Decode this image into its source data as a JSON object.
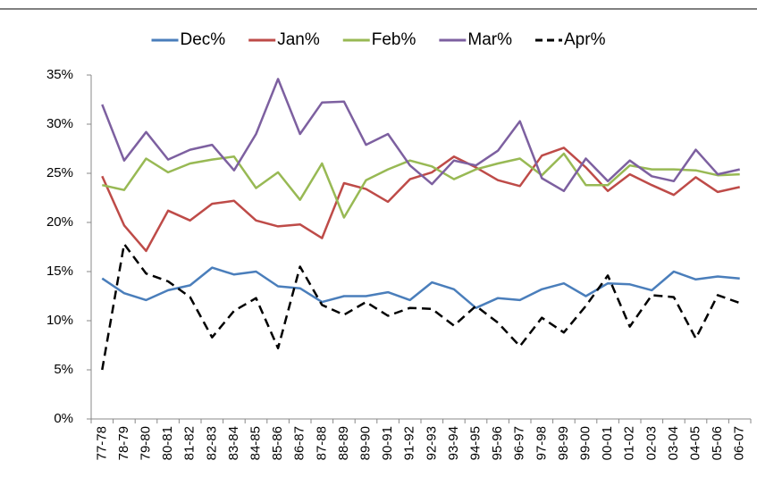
{
  "chart_data": {
    "type": "line",
    "categories": [
      "77-78",
      "78-79",
      "79-80",
      "80-81",
      "81-82",
      "82-83",
      "83-84",
      "84-85",
      "85-86",
      "86-87",
      "87-88",
      "88-89",
      "89-90",
      "90-91",
      "91-92",
      "92-93",
      "93-94",
      "94-95",
      "95-96",
      "96-97",
      "97-98",
      "98-99",
      "99-00",
      "00-01",
      "01-02",
      "02-03",
      "03-04",
      "04-05",
      "05-06",
      "06-07"
    ],
    "series": [
      {
        "name": "Dec%",
        "color": "#4a7ebb",
        "values": [
          14.3,
          12.8,
          12.1,
          13.1,
          13.6,
          15.4,
          14.7,
          15.0,
          13.5,
          13.3,
          11.9,
          12.5,
          12.5,
          12.9,
          12.1,
          13.9,
          13.2,
          11.3,
          12.3,
          12.1,
          13.2,
          13.8,
          12.5,
          13.8,
          13.7,
          13.1,
          15.0,
          14.2,
          14.5,
          14.3
        ]
      },
      {
        "name": "Jan%",
        "color": "#be4b48",
        "values": [
          24.7,
          19.7,
          17.1,
          21.2,
          20.2,
          21.9,
          22.2,
          20.2,
          19.6,
          19.8,
          18.4,
          24.0,
          23.4,
          22.1,
          24.4,
          25.1,
          26.7,
          25.6,
          24.3,
          23.7,
          26.8,
          27.6,
          25.6,
          23.2,
          24.9,
          23.8,
          22.8,
          24.6,
          23.1,
          23.6
        ]
      },
      {
        "name": "Feb%",
        "color": "#98b954",
        "values": [
          23.8,
          23.3,
          26.5,
          25.1,
          26.0,
          26.4,
          26.7,
          23.5,
          25.1,
          22.3,
          26.0,
          20.5,
          24.3,
          25.4,
          26.3,
          25.7,
          24.4,
          25.4,
          26.0,
          26.5,
          24.8,
          27.0,
          23.8,
          23.8,
          25.8,
          25.4,
          25.4,
          25.3,
          24.8,
          24.9
        ]
      },
      {
        "name": "Mar%",
        "color": "#7d60a0",
        "values": [
          32.0,
          26.3,
          29.2,
          26.4,
          27.4,
          27.9,
          25.3,
          29.0,
          34.6,
          29.0,
          32.2,
          32.3,
          27.9,
          29.0,
          25.8,
          23.9,
          26.3,
          25.8,
          27.3,
          30.3,
          24.5,
          23.2,
          26.5,
          24.2,
          26.3,
          24.7,
          24.2,
          27.4,
          24.9,
          25.4
        ]
      },
      {
        "name": "Apr%",
        "color": "#000000",
        "dashed": true,
        "values": [
          5.0,
          17.8,
          14.8,
          14.0,
          12.4,
          8.3,
          11.0,
          12.3,
          7.2,
          15.5,
          11.6,
          10.6,
          11.9,
          10.5,
          11.3,
          11.2,
          9.5,
          11.5,
          9.8,
          7.4,
          10.3,
          8.8,
          11.5,
          14.6,
          9.4,
          12.6,
          12.4,
          8.2,
          12.6,
          11.8
        ]
      }
    ],
    "ylim": [
      0,
      35
    ],
    "yticks": [
      {
        "value": 0,
        "label": "0%"
      },
      {
        "value": 5,
        "label": "5%"
      },
      {
        "value": 10,
        "label": "10%"
      },
      {
        "value": 15,
        "label": "15%"
      },
      {
        "value": 20,
        "label": "20%"
      },
      {
        "value": 25,
        "label": "25%"
      },
      {
        "value": 30,
        "label": "30%"
      },
      {
        "value": 35,
        "label": "35%"
      }
    ],
    "grid": false,
    "legend": "top"
  }
}
